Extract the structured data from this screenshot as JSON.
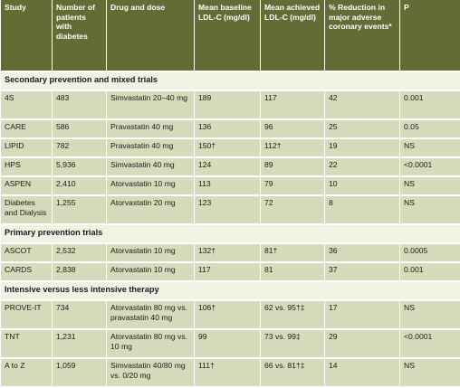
{
  "table": {
    "headers": [
      "Study",
      "Number of patients with diabetes",
      "Drug and dose",
      "Mean baseline LDL-C (mg/dl)",
      "Mean achieved LDL-C (mg/dl)",
      "% Reduction in major adverse coronary events*",
      "P"
    ],
    "sections": [
      {
        "title": "Secondary prevention and mixed trials",
        "rows": [
          [
            "4S",
            "483",
            "Simvastatin 20–40 mg",
            "189",
            "117",
            "42",
            "0.001"
          ],
          [
            "CARE",
            "586",
            "Pravastatin 40 mg",
            "136",
            "96",
            "25",
            "0.05"
          ],
          [
            "LIPID",
            "782",
            "Pravastatin 40 mg",
            "150†",
            "112†",
            "19",
            "NS"
          ],
          [
            "HPS",
            "5,936",
            "Simvastatin 40 mg",
            "124",
            "89",
            "22",
            "<0.0001"
          ],
          [
            "ASPEN",
            "2,410",
            "Atorvastatin 10 mg",
            "113",
            "79",
            "10",
            "NS"
          ],
          [
            "Diabetes and Dialysis",
            "1,255",
            "Atorvastatin 20 mg",
            "123",
            "72",
            "8",
            "NS"
          ]
        ]
      },
      {
        "title": "Primary prevention trials",
        "rows": [
          [
            "ASCOT",
            "2,532",
            "Atorvastatin 10 mg",
            "132†",
            "81†",
            "36",
            "0.0005"
          ],
          [
            "CARDS",
            "2,838",
            "Atorvastatin 10 mg",
            "117",
            "81",
            "37",
            "0.001"
          ]
        ]
      },
      {
        "title": "Intensive versus less intensive therapy",
        "rows": [
          [
            "PROVE-IT",
            "734",
            "Atorvastatin 80 mg vs. pravastatin 40 mg",
            "106†",
            "62 vs. 95†‡",
            "17",
            "NS"
          ],
          [
            "TNT",
            "1,231",
            "Atorvastatin 80 mg vs. 10 mg",
            "99",
            "73 vs. 99‡",
            "29",
            "<0.0001"
          ],
          [
            "A to Z",
            "1,059",
            "Simvastatin 40/80 mg vs. 0/20 mg",
            "111†",
            "66 vs. 81†‡",
            "14",
            "NS"
          ]
        ]
      }
    ]
  }
}
